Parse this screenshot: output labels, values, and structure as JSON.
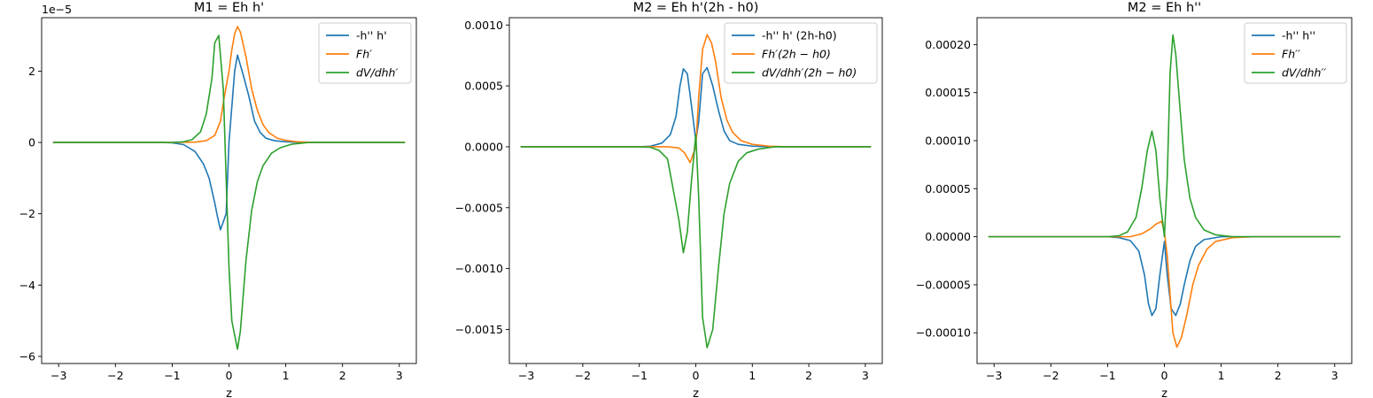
{
  "chart_data": [
    {
      "type": "line",
      "title": "M1 = Eh h'",
      "xlabel": "z",
      "ylabel": "",
      "y_offset_text": "1e−5",
      "xlim": [
        -3.3,
        3.3
      ],
      "ylim": [
        -6.2,
        3.5
      ],
      "x_ticks": [
        -3,
        -2,
        -1,
        0,
        1,
        2,
        3
      ],
      "y_ticks": [
        -6,
        -4,
        -2,
        0,
        2
      ],
      "grid": false,
      "legend_placement": "upper-right",
      "series": [
        {
          "name": "-h'' h'",
          "color": "#1f77b4",
          "points": [
            [
              -3.1,
              0
            ],
            [
              -1.2,
              0
            ],
            [
              -1.0,
              -0.01
            ],
            [
              -0.8,
              -0.06
            ],
            [
              -0.6,
              -0.25
            ],
            [
              -0.45,
              -0.6
            ],
            [
              -0.35,
              -1.0
            ],
            [
              -0.25,
              -1.7
            ],
            [
              -0.2,
              -2.1
            ],
            [
              -0.15,
              -2.45
            ],
            [
              -0.05,
              -2.0
            ],
            [
              0.0,
              0.0
            ],
            [
              0.05,
              1.0
            ],
            [
              0.1,
              2.0
            ],
            [
              0.15,
              2.45
            ],
            [
              0.25,
              1.9
            ],
            [
              0.35,
              1.3
            ],
            [
              0.45,
              0.6
            ],
            [
              0.55,
              0.28
            ],
            [
              0.65,
              0.12
            ],
            [
              0.8,
              0.05
            ],
            [
              1.0,
              0.02
            ],
            [
              1.3,
              0.0
            ],
            [
              3.1,
              0
            ]
          ]
        },
        {
          "name": "Fh′",
          "color": "#ff7f0e",
          "points": [
            [
              -3.1,
              0
            ],
            [
              -1.0,
              0
            ],
            [
              -0.6,
              0.01
            ],
            [
              -0.4,
              0.05
            ],
            [
              -0.25,
              0.2
            ],
            [
              -0.15,
              0.6
            ],
            [
              -0.08,
              1.3
            ],
            [
              0.0,
              2.0
            ],
            [
              0.05,
              2.6
            ],
            [
              0.1,
              3.05
            ],
            [
              0.15,
              3.25
            ],
            [
              0.2,
              3.1
            ],
            [
              0.3,
              2.4
            ],
            [
              0.4,
              1.5
            ],
            [
              0.5,
              0.9
            ],
            [
              0.6,
              0.5
            ],
            [
              0.7,
              0.28
            ],
            [
              0.85,
              0.12
            ],
            [
              1.0,
              0.06
            ],
            [
              1.2,
              0.02
            ],
            [
              1.5,
              0.0
            ],
            [
              3.1,
              0
            ]
          ]
        },
        {
          "name": "dV/dhh′",
          "color": "#2ca02c",
          "points": [
            [
              -3.1,
              0
            ],
            [
              -1.0,
              0
            ],
            [
              -0.8,
              0.02
            ],
            [
              -0.65,
              0.08
            ],
            [
              -0.5,
              0.3
            ],
            [
              -0.4,
              0.8
            ],
            [
              -0.3,
              1.8
            ],
            [
              -0.25,
              2.8
            ],
            [
              -0.18,
              3.0
            ],
            [
              -0.1,
              1.5
            ],
            [
              -0.05,
              -1.0
            ],
            [
              0.0,
              -3.5
            ],
            [
              0.05,
              -5.0
            ],
            [
              0.15,
              -5.8
            ],
            [
              0.2,
              -5.3
            ],
            [
              0.3,
              -3.3
            ],
            [
              0.4,
              -1.9
            ],
            [
              0.5,
              -1.1
            ],
            [
              0.6,
              -0.65
            ],
            [
              0.75,
              -0.3
            ],
            [
              0.9,
              -0.15
            ],
            [
              1.1,
              -0.05
            ],
            [
              1.4,
              0.0
            ],
            [
              3.1,
              0
            ]
          ]
        }
      ]
    },
    {
      "type": "line",
      "title": "M2 = Eh h'(2h - h0)",
      "xlabel": "z",
      "ylabel": "",
      "y_offset_text": "",
      "xlim": [
        -3.3,
        3.3
      ],
      "ylim": [
        -0.00178,
        0.00106
      ],
      "x_ticks": [
        -3,
        -2,
        -1,
        0,
        1,
        2,
        3
      ],
      "y_ticks": [
        -0.0015,
        -0.001,
        -0.0005,
        0.0,
        0.0005,
        0.001
      ],
      "y_tick_labels": [
        "−0.0015",
        "−0.0010",
        "−0.0005",
        "0.0000",
        "0.0005",
        "0.0010"
      ],
      "grid": false,
      "legend_placement": "upper-right",
      "series": [
        {
          "name": "-h'' h' (2h-h0)",
          "color": "#1f77b4",
          "points": [
            [
              -3.1,
              0
            ],
            [
              -1.0,
              0
            ],
            [
              -0.8,
              5e-06
            ],
            [
              -0.6,
              3e-05
            ],
            [
              -0.45,
              0.0001
            ],
            [
              -0.35,
              0.00025
            ],
            [
              -0.28,
              0.0005
            ],
            [
              -0.22,
              0.00064
            ],
            [
              -0.15,
              0.0006
            ],
            [
              -0.08,
              0.00035
            ],
            [
              0.0,
              5e-05
            ],
            [
              0.05,
              0.0002
            ],
            [
              0.12,
              0.0006
            ],
            [
              0.2,
              0.00065
            ],
            [
              0.3,
              0.0005
            ],
            [
              0.4,
              0.0003
            ],
            [
              0.5,
              0.00013
            ],
            [
              0.6,
              5e-05
            ],
            [
              0.75,
              2e-05
            ],
            [
              1.0,
              5e-06
            ],
            [
              1.3,
              0
            ],
            [
              3.1,
              0
            ]
          ]
        },
        {
          "name": "Fh′(2h − h0)",
          "color": "#ff7f0e",
          "points": [
            [
              -3.1,
              0
            ],
            [
              -1.0,
              0
            ],
            [
              -0.5,
              0.0
            ],
            [
              -0.3,
              -1e-05
            ],
            [
              -0.2,
              -5e-05
            ],
            [
              -0.1,
              -0.00013
            ],
            [
              0.0,
              0.0
            ],
            [
              0.05,
              0.0004
            ],
            [
              0.12,
              0.0008
            ],
            [
              0.2,
              0.00092
            ],
            [
              0.28,
              0.00085
            ],
            [
              0.35,
              0.0007
            ],
            [
              0.45,
              0.0004
            ],
            [
              0.55,
              0.00022
            ],
            [
              0.65,
              0.00012
            ],
            [
              0.8,
              5e-05
            ],
            [
              1.0,
              2e-05
            ],
            [
              1.3,
              5e-06
            ],
            [
              1.6,
              0
            ],
            [
              3.1,
              0
            ]
          ]
        },
        {
          "name": "dV/dhh′(2h − h0)",
          "color": "#2ca02c",
          "points": [
            [
              -3.1,
              0
            ],
            [
              -1.0,
              0
            ],
            [
              -0.8,
              -5e-06
            ],
            [
              -0.65,
              -3e-05
            ],
            [
              -0.5,
              -0.0001
            ],
            [
              -0.4,
              -0.00035
            ],
            [
              -0.3,
              -0.0006
            ],
            [
              -0.22,
              -0.00087
            ],
            [
              -0.15,
              -0.0007
            ],
            [
              -0.08,
              -0.0003
            ],
            [
              0.0,
              0.0001
            ],
            [
              0.05,
              -0.0004
            ],
            [
              0.12,
              -0.0014
            ],
            [
              0.2,
              -0.00165
            ],
            [
              0.3,
              -0.0015
            ],
            [
              0.4,
              -0.001
            ],
            [
              0.5,
              -0.00055
            ],
            [
              0.6,
              -0.0003
            ],
            [
              0.75,
              -0.00012
            ],
            [
              0.9,
              -5e-05
            ],
            [
              1.1,
              -2e-05
            ],
            [
              1.4,
              0
            ],
            [
              3.1,
              0
            ]
          ]
        }
      ]
    },
    {
      "type": "line",
      "title": "M2 = Eh h''",
      "xlabel": "z",
      "ylabel": "",
      "y_offset_text": "",
      "xlim": [
        -3.3,
        3.3
      ],
      "ylim": [
        -0.000132,
        0.000228
      ],
      "x_ticks": [
        -3,
        -2,
        -1,
        0,
        1,
        2,
        3
      ],
      "y_ticks": [
        -0.0001,
        -5e-05,
        0.0,
        5e-05,
        0.0001,
        0.00015,
        0.0002
      ],
      "y_tick_labels": [
        "−0.00010",
        "−0.00005",
        "0.00000",
        "0.00005",
        "0.00010",
        "0.00015",
        "0.00020"
      ],
      "grid": false,
      "legend_placement": "upper-right",
      "series": [
        {
          "name": "-h'' h''",
          "color": "#1f77b4",
          "points": [
            [
              -3.1,
              0
            ],
            [
              -1.0,
              0
            ],
            [
              -0.8,
              -1e-06
            ],
            [
              -0.6,
              -4e-06
            ],
            [
              -0.45,
              -1.5e-05
            ],
            [
              -0.35,
              -4e-05
            ],
            [
              -0.28,
              -7e-05
            ],
            [
              -0.22,
              -8.2e-05
            ],
            [
              -0.15,
              -7.5e-05
            ],
            [
              -0.08,
              -4e-05
            ],
            [
              0.0,
              -5e-06
            ],
            [
              0.05,
              -4e-05
            ],
            [
              0.12,
              -7.5e-05
            ],
            [
              0.2,
              -8.2e-05
            ],
            [
              0.28,
              -7e-05
            ],
            [
              0.35,
              -5e-05
            ],
            [
              0.45,
              -2.5e-05
            ],
            [
              0.55,
              -1e-05
            ],
            [
              0.7,
              -3e-06
            ],
            [
              1.0,
              0
            ],
            [
              3.1,
              0
            ]
          ]
        },
        {
          "name": "Fh′′",
          "color": "#ff7f0e",
          "points": [
            [
              -3.1,
              0
            ],
            [
              -1.0,
              0
            ],
            [
              -0.6,
              0.0
            ],
            [
              -0.4,
              3e-06
            ],
            [
              -0.25,
              8e-06
            ],
            [
              -0.15,
              1.3e-05
            ],
            [
              -0.05,
              1.6e-05
            ],
            [
              0.0,
              5e-06
            ],
            [
              0.05,
              -2e-05
            ],
            [
              0.1,
              -6e-05
            ],
            [
              0.15,
              -0.0001
            ],
            [
              0.22,
              -0.000115
            ],
            [
              0.3,
              -0.000105
            ],
            [
              0.4,
              -8e-05
            ],
            [
              0.5,
              -5e-05
            ],
            [
              0.6,
              -3e-05
            ],
            [
              0.75,
              -1.3e-05
            ],
            [
              0.9,
              -5e-06
            ],
            [
              1.2,
              -1e-06
            ],
            [
              1.6,
              0
            ],
            [
              3.1,
              0
            ]
          ]
        },
        {
          "name": "dV/dhh′′",
          "color": "#2ca02c",
          "points": [
            [
              -3.1,
              0
            ],
            [
              -1.0,
              0
            ],
            [
              -0.8,
              1e-06
            ],
            [
              -0.65,
              5e-06
            ],
            [
              -0.5,
              2e-05
            ],
            [
              -0.4,
              5e-05
            ],
            [
              -0.3,
              9e-05
            ],
            [
              -0.22,
              0.00011
            ],
            [
              -0.15,
              9e-05
            ],
            [
              -0.08,
              4e-05
            ],
            [
              0.0,
              0.0
            ],
            [
              0.05,
              6e-05
            ],
            [
              0.1,
              0.00017
            ],
            [
              0.15,
              0.00021
            ],
            [
              0.2,
              0.00019
            ],
            [
              0.28,
              0.00013
            ],
            [
              0.35,
              8e-05
            ],
            [
              0.45,
              4e-05
            ],
            [
              0.55,
              2e-05
            ],
            [
              0.7,
              7e-06
            ],
            [
              0.9,
              2e-06
            ],
            [
              1.2,
              0
            ],
            [
              3.1,
              0
            ]
          ]
        }
      ]
    }
  ]
}
